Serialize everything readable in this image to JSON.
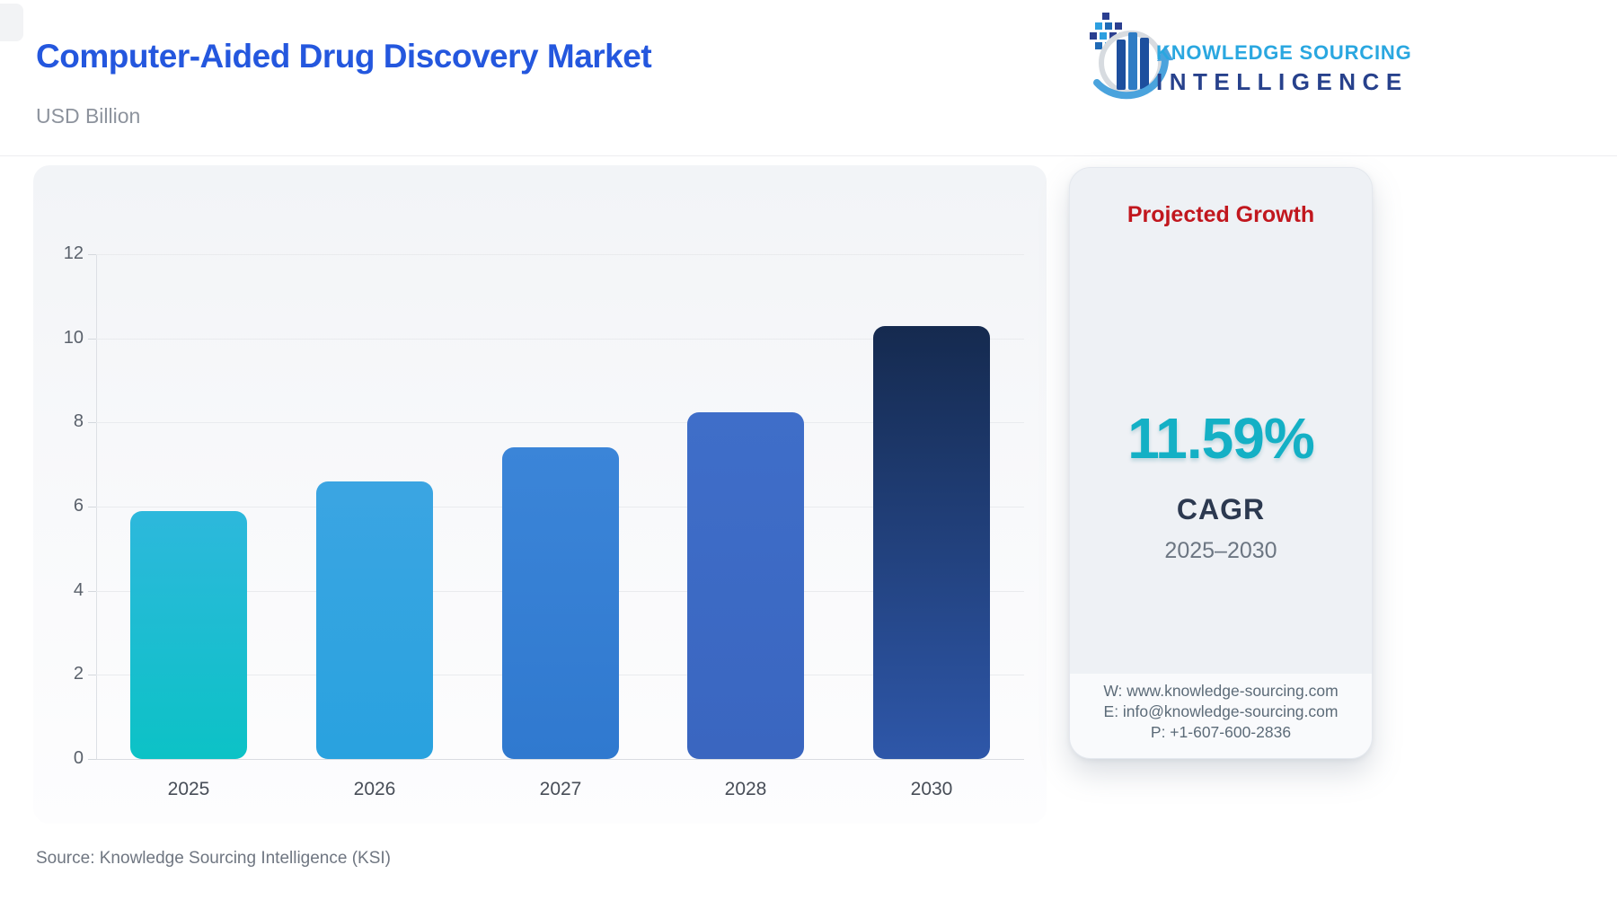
{
  "header": {
    "title": "Computer-Aided Drug Discovery Market",
    "subtitle": "USD Billion"
  },
  "logo": {
    "line1": "KNOWLEDGE SOURCING",
    "line2": "INTELLIGENCE"
  },
  "chart_data": {
    "type": "bar",
    "title": "Computer-Aided Drug Discovery Market",
    "ylabel": "USD Billion",
    "xlabel": "",
    "categories": [
      "2025",
      "2026",
      "2027",
      "2028",
      "2030"
    ],
    "values": [
      5.9,
      6.6,
      7.4,
      8.25,
      10.3
    ],
    "ylim": [
      0,
      12
    ],
    "ytick_step": 2,
    "grid": true,
    "legend": "none",
    "bar_colors": [
      {
        "from": "#2db8dc",
        "to": "#0cc2c6"
      },
      {
        "from": "#3ba5e2",
        "to": "#29a2df"
      },
      {
        "from": "#3b85d8",
        "to": "#3079cf"
      },
      {
        "from": "#3f6ec9",
        "to": "#3a66c0"
      },
      {
        "from": "#152a4f",
        "to": "#2e57a9"
      }
    ]
  },
  "panel": {
    "title": "Projected Growth",
    "value": "11.59%",
    "label": "CAGR",
    "period": "2025–2030",
    "contact": {
      "website": "W: www.knowledge-sourcing.com",
      "email": "E: info@knowledge-sourcing.com",
      "phone": "P: +1-607-600-2836"
    }
  },
  "footer": {
    "source": "Source: Knowledge Sourcing Intelligence (KSI)"
  },
  "colors": {
    "title_blue": "#2457de",
    "panel_title_red": "#c1171e",
    "cagr_teal": "#14b0c5",
    "logo_light_blue": "#2aa7e0",
    "logo_dark_blue": "#27418c"
  }
}
